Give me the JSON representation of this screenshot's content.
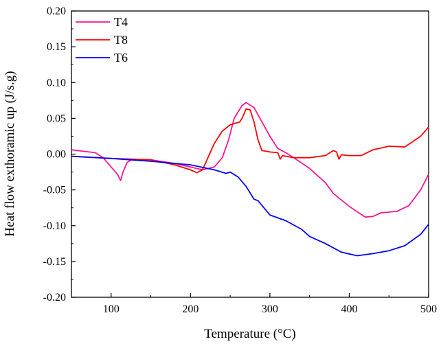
{
  "chart_data": {
    "type": "line",
    "title": "",
    "xlabel": "Temperature (°C)",
    "ylabel": "Heat flow exthoramic up (J/s.g)",
    "xlim": [
      50,
      500
    ],
    "ylim": [
      -0.2,
      0.2
    ],
    "xticks": [
      100,
      200,
      300,
      400,
      500
    ],
    "xtick_labels": [
      "100",
      "200",
      "300",
      "400",
      "500"
    ],
    "yticks": [
      -0.2,
      -0.15,
      -0.1,
      -0.05,
      0.0,
      0.05,
      0.1,
      0.15,
      0.2
    ],
    "ytick_labels": [
      "-0.20",
      "-0.15",
      "-0.10",
      "-0.05",
      "0.00",
      "0.05",
      "0.10",
      "0.15",
      "0.20"
    ],
    "grid": false,
    "legend_position": "top-left",
    "series": [
      {
        "name": "T4",
        "color": "#ff1493",
        "x": [
          50,
          80,
          90,
          100,
          108,
          112,
          115,
          120,
          125,
          150,
          180,
          200,
          215,
          230,
          240,
          248,
          255,
          265,
          270,
          280,
          290,
          300,
          310,
          320,
          330,
          350,
          370,
          380,
          400,
          420,
          430,
          440,
          460,
          475,
          490,
          500
        ],
        "y": [
          0.006,
          0.002,
          -0.005,
          -0.018,
          -0.028,
          -0.037,
          -0.025,
          -0.012,
          -0.008,
          -0.008,
          -0.013,
          -0.018,
          -0.022,
          -0.018,
          -0.005,
          0.02,
          0.05,
          0.068,
          0.072,
          0.065,
          0.045,
          0.025,
          0.008,
          0.002,
          -0.005,
          -0.02,
          -0.04,
          -0.055,
          -0.073,
          -0.088,
          -0.087,
          -0.082,
          -0.08,
          -0.072,
          -0.05,
          -0.028
        ]
      },
      {
        "name": "T8",
        "color": "#ff0000",
        "x": [
          50,
          100,
          150,
          180,
          200,
          208,
          215,
          220,
          230,
          240,
          250,
          262,
          265,
          270,
          275,
          280,
          285,
          290,
          300,
          310,
          313,
          316,
          330,
          350,
          370,
          380,
          384,
          387,
          390,
          400,
          415,
          430,
          450,
          470,
          490,
          500
        ],
        "y": [
          -0.003,
          -0.006,
          -0.008,
          -0.015,
          -0.022,
          -0.026,
          -0.022,
          -0.01,
          0.015,
          0.032,
          0.041,
          0.045,
          0.05,
          0.063,
          0.062,
          0.045,
          0.02,
          0.005,
          0.003,
          0.002,
          -0.007,
          -0.002,
          -0.005,
          -0.005,
          -0.002,
          0.005,
          0.003,
          -0.007,
          -0.001,
          -0.002,
          -0.002,
          0.006,
          0.011,
          0.01,
          0.025,
          0.038
        ]
      },
      {
        "name": "T6",
        "color": "#0000ff",
        "x": [
          50,
          100,
          150,
          200,
          230,
          245,
          250,
          260,
          270,
          280,
          285,
          300,
          320,
          340,
          350,
          370,
          390,
          410,
          430,
          450,
          470,
          490,
          500
        ],
        "y": [
          -0.003,
          -0.006,
          -0.01,
          -0.015,
          -0.022,
          -0.027,
          -0.025,
          -0.032,
          -0.045,
          -0.063,
          -0.065,
          -0.085,
          -0.093,
          -0.105,
          -0.115,
          -0.125,
          -0.137,
          -0.142,
          -0.139,
          -0.135,
          -0.128,
          -0.112,
          -0.098
        ]
      }
    ]
  }
}
